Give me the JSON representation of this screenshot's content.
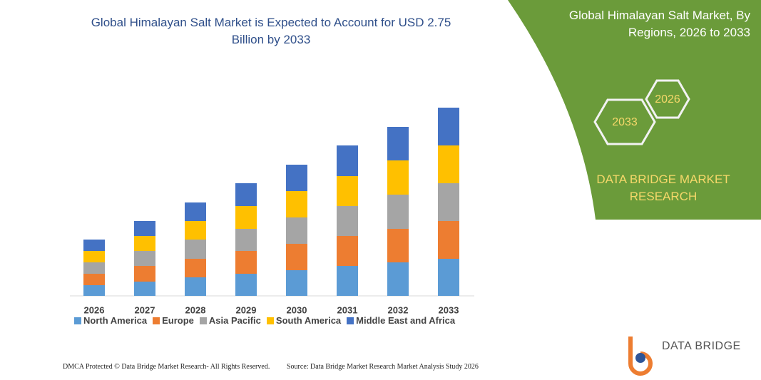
{
  "chart_data": {
    "type": "bar",
    "stacked": true,
    "title": "Global Himalayan Salt Market is Expected to Account for USD 2.75 Billion by 2033",
    "categories": [
      "2026",
      "2027",
      "2028",
      "2029",
      "2030",
      "2031",
      "2032",
      "2033"
    ],
    "series": [
      {
        "name": "North America",
        "color": "#5b9bd5",
        "values": [
          15,
          20,
          26,
          31,
          36,
          42,
          47,
          52
        ]
      },
      {
        "name": "Europe",
        "color": "#ed7d31",
        "values": [
          16,
          22,
          26,
          32,
          37,
          42,
          47,
          53
        ]
      },
      {
        "name": "Asia Pacific",
        "color": "#a5a5a5",
        "values": [
          16,
          21,
          27,
          31,
          37,
          42,
          48,
          53
        ]
      },
      {
        "name": "South America",
        "color": "#ffc000",
        "values": [
          16,
          21,
          26,
          32,
          37,
          42,
          48,
          53
        ]
      },
      {
        "name": "Middle East and Africa",
        "color": "#4472c4",
        "values": [
          16,
          21,
          26,
          32,
          37,
          43,
          47,
          53
        ]
      }
    ]
  },
  "panel": {
    "title": "Global Himalayan Salt Market, By Regions, 2026 to 2033",
    "hexagons": [
      "2026",
      "2033"
    ],
    "brand": "DATA BRIDGE MARKET RESEARCH"
  },
  "logo": "DATA BRIDGE",
  "footer": {
    "copyright": "DMCA Protected © Data Bridge Market Research-  All Rights Reserved.",
    "source": "Source: Data Bridge Market Research  Market Analysis Study 2026"
  }
}
